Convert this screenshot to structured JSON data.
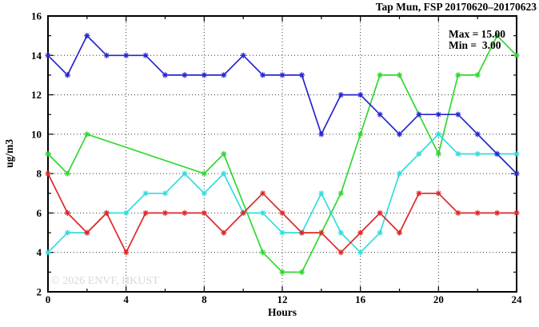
{
  "header": {
    "title": "Tap Mun, FSP 20170620–20170623"
  },
  "annotation": {
    "max_label": "Max = 15.00",
    "min_label": "Min =  3.00"
  },
  "watermark": "© 2026 ENVF, HKUST",
  "chart_data": {
    "type": "line",
    "title": "Tap Mun, FSP 20170620–20170623",
    "xlabel": "Hours",
    "ylabel": "ug/m3",
    "xlim": [
      0,
      24
    ],
    "ylim": [
      2,
      16
    ],
    "x_major_ticks": [
      0,
      4,
      8,
      12,
      16,
      20,
      24
    ],
    "x_minor_step": 2,
    "y_major_ticks": [
      2,
      4,
      6,
      8,
      10,
      12,
      14,
      16
    ],
    "y_minor_step": 1,
    "grid": true,
    "legend_position": "none",
    "marker": "asterisk",
    "x": [
      0,
      1,
      2,
      3,
      4,
      5,
      6,
      7,
      8,
      9,
      10,
      11,
      12,
      13,
      14,
      15,
      16,
      17,
      18,
      19,
      20,
      21,
      22,
      23,
      24
    ],
    "series": [
      {
        "name": "series-green",
        "color": "#2fd82f",
        "values": [
          9,
          8,
          10,
          null,
          null,
          null,
          null,
          null,
          8,
          9,
          null,
          4,
          3,
          3,
          null,
          7,
          10,
          13,
          13,
          null,
          9,
          13,
          13,
          15,
          14
        ]
      },
      {
        "name": "series-cyan",
        "color": "#33dcdc",
        "values": [
          4,
          5,
          5,
          6,
          6,
          7,
          7,
          8,
          7,
          8,
          6,
          6,
          5,
          5,
          7,
          5,
          4,
          5,
          8,
          9,
          10,
          9,
          9,
          9,
          9
        ]
      },
      {
        "name": "series-red",
        "color": "#e02626",
        "values": [
          8,
          6,
          5,
          6,
          4,
          6,
          6,
          6,
          6,
          5,
          6,
          7,
          6,
          5,
          5,
          4,
          5,
          6,
          5,
          7,
          7,
          6,
          6,
          6,
          6
        ]
      },
      {
        "name": "series-blue",
        "color": "#2626d0",
        "values": [
          14,
          13,
          15,
          14,
          14,
          14,
          13,
          13,
          13,
          13,
          14,
          13,
          13,
          13,
          10,
          12,
          12,
          11,
          10,
          11,
          11,
          11,
          10,
          9,
          8
        ]
      }
    ],
    "annotations": [
      "Max = 15.00",
      "Min =  3.00"
    ],
    "stats": {
      "max": 15.0,
      "min": 3.0
    }
  }
}
